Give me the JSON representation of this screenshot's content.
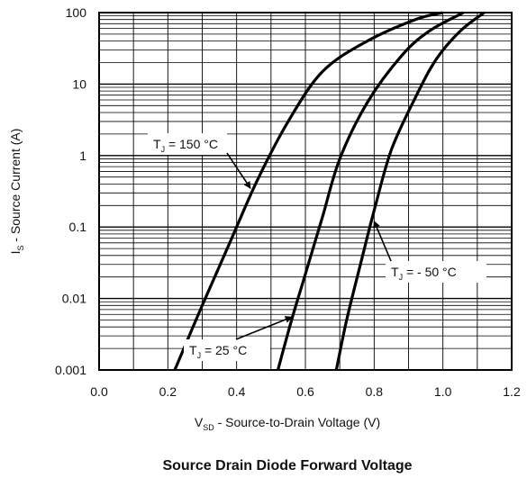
{
  "chart_data": {
    "type": "line",
    "title": "Source Drain Diode Forward Voltage",
    "xlabel": {
      "main": "V",
      "sub": "SD",
      "rest": " - Source-to-Drain Voltage (V)"
    },
    "ylabel": {
      "main": "I",
      "sub": "S",
      "rest": " - Source Current (A)"
    },
    "xlim": [
      0.0,
      1.2
    ],
    "ylim": [
      0.001,
      100
    ],
    "yscale": "log",
    "grid": true,
    "xticks": [
      "0.0",
      "0.2",
      "0.4",
      "0.6",
      "0.8",
      "1.0",
      "1.2"
    ],
    "yticks": [
      "0.001",
      "0.01",
      "0.1",
      "1",
      "10",
      "100"
    ],
    "series": [
      {
        "name": "T_J = 150 °C",
        "label": {
          "main": "T",
          "sub": "J",
          "rest": " = 150 °C"
        },
        "x": [
          0.22,
          0.3,
          0.38,
          0.46,
          0.55,
          0.65,
          0.78,
          0.92,
          1.0
        ],
        "y": [
          0.001,
          0.008,
          0.06,
          0.45,
          3.0,
          15,
          40,
          80,
          100
        ]
      },
      {
        "name": "T_J = 25 °C",
        "label": {
          "main": "T",
          "sub": "J",
          "rest": " = 25 °C"
        },
        "x": [
          0.52,
          0.56,
          0.6,
          0.65,
          0.7,
          0.78,
          0.88,
          0.96,
          1.06
        ],
        "y": [
          0.001,
          0.005,
          0.022,
          0.14,
          0.9,
          5.5,
          25,
          55,
          100
        ]
      },
      {
        "name": "T_J = - 50 °C",
        "label": {
          "main": "T",
          "sub": "J",
          "rest": " = - 50 °C"
        },
        "x": [
          0.69,
          0.72,
          0.76,
          0.8,
          0.85,
          0.92,
          0.98,
          1.05,
          1.12
        ],
        "y": [
          0.001,
          0.005,
          0.03,
          0.17,
          1.2,
          6.5,
          22,
          55,
          100
        ]
      }
    ],
    "annotations": [
      {
        "series": 0,
        "at": [
          0.44,
          0.35
        ]
      },
      {
        "series": 1,
        "at": [
          0.56,
          0.0055
        ]
      },
      {
        "series": 2,
        "at": [
          0.8,
          0.12
        ]
      }
    ]
  }
}
